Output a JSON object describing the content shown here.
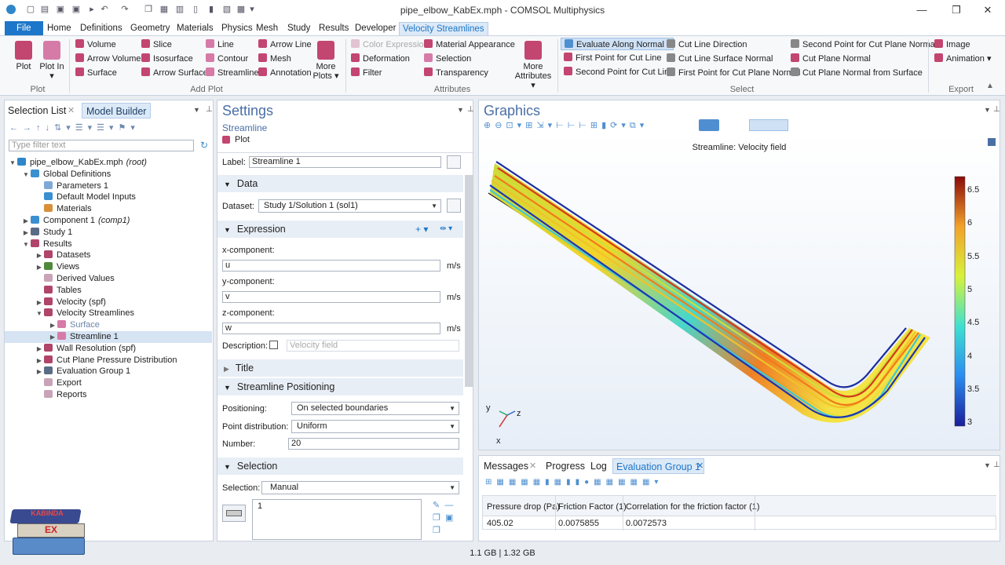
{
  "window": {
    "title": "pipe_elbow_KabEx.mph - COMSOL Multiphysics",
    "min": "—",
    "max": "❐",
    "close": "✕"
  },
  "menu": {
    "file": "File",
    "items": [
      "Home",
      "Definitions",
      "Geometry",
      "Materials",
      "Physics",
      "Mesh",
      "Study",
      "Results",
      "Developer",
      "Velocity Streamlines"
    ]
  },
  "ribbon": {
    "plot": {
      "plot": "Plot",
      "plot_in": "Plot In ▾",
      "group": "Plot"
    },
    "add_plot": {
      "col1": [
        "Volume",
        "Arrow Volume",
        "Surface"
      ],
      "col2": [
        "Slice",
        "Isosurface",
        "Arrow Surface"
      ],
      "col3": [
        "Line",
        "Contour",
        "Streamline"
      ],
      "col4": [
        "Arrow Line",
        "Mesh",
        "Annotation"
      ],
      "more": "More Plots ▾",
      "group": "Add Plot"
    },
    "attributes": {
      "col1": [
        "Color Expression",
        "Deformation",
        "Filter"
      ],
      "col2": [
        "Material Appearance",
        "Selection",
        "Transparency"
      ],
      "more": "More Attributes ▾",
      "group": "Attributes"
    },
    "select": {
      "col1": [
        "Evaluate Along Normal",
        "First Point for Cut Line",
        "Second Point for Cut Line"
      ],
      "col2": [
        "Cut Line Direction",
        "Cut Line Surface Normal",
        "First Point for Cut Plane Normal"
      ],
      "col3": [
        "Second Point for Cut Plane Normal",
        "Cut Plane Normal",
        "Cut Plane Normal from Surface"
      ],
      "group": "Select"
    },
    "export": {
      "items": [
        "Image",
        "Animation ▾"
      ],
      "group": "Export"
    }
  },
  "model_builder": {
    "tab_selection": "Selection List",
    "tab_model": "Model Builder",
    "filter_placeholder": "Type filter text",
    "tree": [
      {
        "label": "pipe_elbow_KabEx.mph",
        "suffix": "(root)",
        "level": 0,
        "arrow": "▼",
        "color": "#2f86c9"
      },
      {
        "label": "Global Definitions",
        "level": 1,
        "arrow": "▼",
        "color": "#3a8fd1"
      },
      {
        "label": "Parameters 1",
        "level": 2,
        "arrow": "",
        "color": "#7fa9d6"
      },
      {
        "label": "Default Model Inputs",
        "level": 2,
        "arrow": "",
        "color": "#3a8fd1"
      },
      {
        "label": "Materials",
        "level": 2,
        "arrow": "",
        "color": "#d9903a"
      },
      {
        "label": "Component 1",
        "suffix": "(comp1)",
        "level": 1,
        "arrow": "▶",
        "color": "#3a8fd1"
      },
      {
        "label": "Study 1",
        "level": 1,
        "arrow": "▶",
        "color": "#5a6c86"
      },
      {
        "label": "Results",
        "level": 1,
        "arrow": "▼",
        "color": "#b0446a"
      },
      {
        "label": "Datasets",
        "level": 2,
        "arrow": "▶",
        "color": "#b0446a"
      },
      {
        "label": "Views",
        "level": 2,
        "arrow": "▶",
        "color": "#4f8a3c"
      },
      {
        "label": "Derived Values",
        "level": 2,
        "arrow": "",
        "color": "#c9a3b8"
      },
      {
        "label": "Tables",
        "level": 2,
        "arrow": "",
        "color": "#b0446a"
      },
      {
        "label": "Velocity (spf)",
        "level": 2,
        "arrow": "▶",
        "color": "#b0446a"
      },
      {
        "label": "Velocity Streamlines",
        "level": 2,
        "arrow": "▼",
        "color": "#b0446a"
      },
      {
        "label": "Surface",
        "level": 3,
        "arrow": "▶",
        "color": "#d67ba8",
        "muted": true
      },
      {
        "label": "Streamline 1",
        "level": 3,
        "arrow": "▶",
        "color": "#d67ba8",
        "selected": true
      },
      {
        "label": "Wall Resolution (spf)",
        "level": 2,
        "arrow": "▶",
        "color": "#b0446a"
      },
      {
        "label": "Cut Plane Pressure Distribution",
        "level": 2,
        "arrow": "▶",
        "color": "#b0446a"
      },
      {
        "label": "Evaluation Group 1",
        "level": 2,
        "arrow": "▶",
        "color": "#5a6c86"
      },
      {
        "label": "Export",
        "level": 2,
        "arrow": "",
        "color": "#c9a3b8"
      },
      {
        "label": "Reports",
        "level": 2,
        "arrow": "",
        "color": "#c9a3b8"
      }
    ]
  },
  "settings": {
    "title": "Settings",
    "subtitle": "Streamline",
    "plot_btn": "Plot",
    "label_lbl": "Label:",
    "label_val": "Streamline 1",
    "data_sec": "Data",
    "dataset_lbl": "Dataset:",
    "dataset_val": "Study 1/Solution 1 (sol1)",
    "expr_sec": "Expression",
    "x_lbl": "x-component:",
    "x_val": "u",
    "y_lbl": "y-component:",
    "y_val": "v",
    "z_lbl": "z-component:",
    "z_val": "w",
    "unit": "m/s",
    "desc_lbl": "Description:",
    "desc_placeholder": "Velocity field",
    "title_sec": "Title",
    "pos_sec": "Streamline Positioning",
    "positioning_lbl": "Positioning:",
    "positioning_val": "On selected boundaries",
    "dist_lbl": "Point distribution:",
    "dist_val": "Uniform",
    "number_lbl": "Number:",
    "number_val": "20",
    "sel_sec": "Selection",
    "selection_lbl": "Selection:",
    "selection_val": "Manual",
    "selection_item": "1"
  },
  "graphics": {
    "title": "Graphics",
    "plot_title": "Streamline: Velocity field",
    "axes": {
      "x": "x",
      "y": "y",
      "z": "z"
    },
    "colorbar": {
      "ticks": [
        "6.5",
        "6",
        "5.5",
        "5",
        "4.5",
        "4",
        "3.5",
        "3"
      ]
    }
  },
  "results": {
    "tabs": [
      "Messages",
      "Progress",
      "Log",
      "Evaluation Group 1"
    ],
    "headers": [
      "Pressure drop (Pa)",
      "Friction Factor (1)",
      "Correlation for the friction factor (1)"
    ],
    "values": [
      "405.02",
      "0.0075855",
      "0.0072573"
    ]
  },
  "status": {
    "memory": "1.1 GB | 1.32 GB"
  },
  "logo": {
    "top": "KABINDA",
    "mid": "EX"
  },
  "colors": {
    "accent": "#1d76c9",
    "selected": "#cfe1f5"
  }
}
